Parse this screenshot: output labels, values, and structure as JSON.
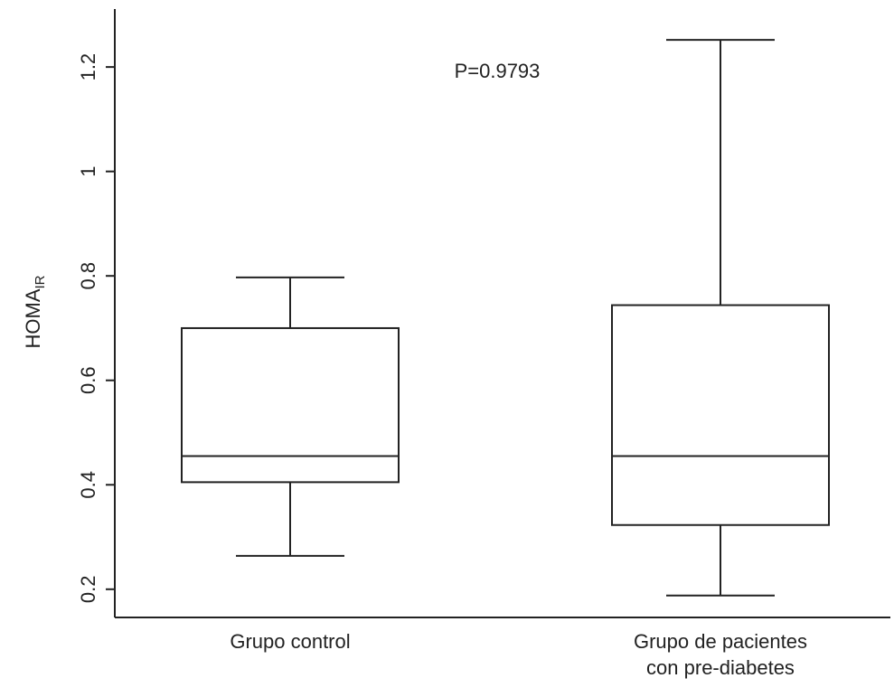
{
  "chart_data": {
    "type": "box",
    "y_label": "HOMA",
    "y_label_subscript": "IR",
    "annotation": "P=0.9793",
    "categories": [
      "Grupo control",
      "Grupo de pacientes con pre-diabetes"
    ],
    "boxes": [
      {
        "whisker_low": 0.264,
        "q1": 0.405,
        "median": 0.455,
        "q3": 0.7,
        "whisker_high": 0.797
      },
      {
        "whisker_low": 0.188,
        "q1": 0.323,
        "median": 0.455,
        "q3": 0.744,
        "whisker_high": 1.252
      }
    ],
    "color": "#222222",
    "ylim": [
      0.146,
      1.311
    ],
    "yticks": [
      0.2,
      0.4,
      0.6,
      0.8,
      1,
      1.2
    ]
  }
}
